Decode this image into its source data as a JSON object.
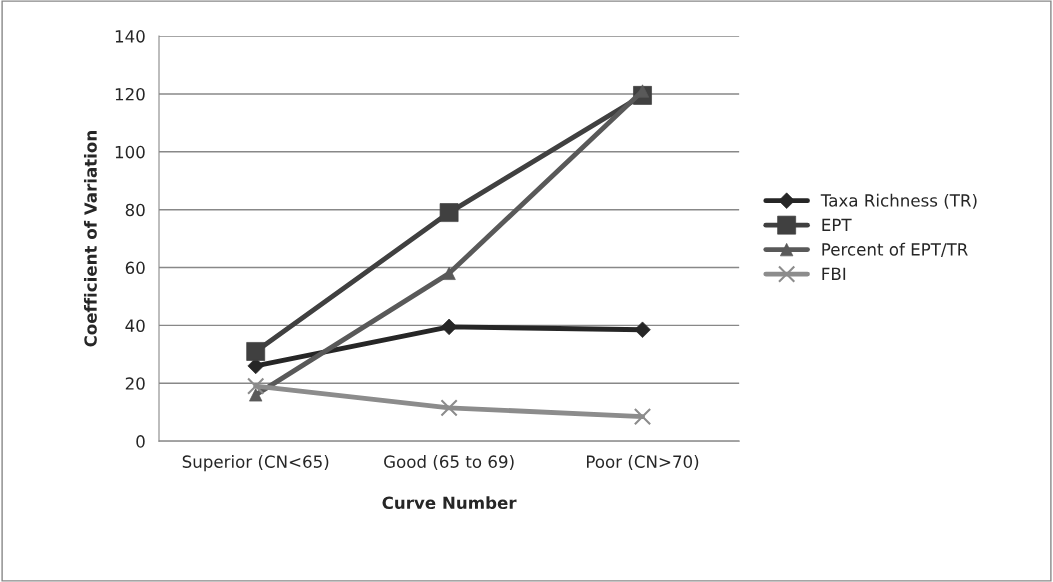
{
  "chart_data": {
    "type": "line",
    "xlabel": "Curve Number",
    "ylabel": "Coefficient of Variation",
    "categories": [
      "Superior (CN<65)",
      "Good (65 to 69)",
      "Poor (CN>70)"
    ],
    "series": [
      {
        "name": "Taxa Richness (TR)",
        "color": "#262626",
        "marker": "diamond",
        "values": [
          26,
          39.5,
          38.5
        ]
      },
      {
        "name": "EPT",
        "color": "#404040",
        "marker": "square",
        "values": [
          31,
          79,
          119.5
        ]
      },
      {
        "name": "Percent of EPT/TR",
        "color": "#595959",
        "marker": "triangle",
        "values": [
          16,
          58,
          121
        ]
      },
      {
        "name": "FBI",
        "color": "#8c8c8c",
        "marker": "cross",
        "values": [
          19,
          11.5,
          8.5
        ]
      }
    ],
    "ylim": [
      0,
      140
    ],
    "yticks": [
      0,
      20,
      40,
      60,
      80,
      100,
      120,
      140
    ],
    "grid": "y",
    "legend": "right",
    "line_style": "solid"
  }
}
